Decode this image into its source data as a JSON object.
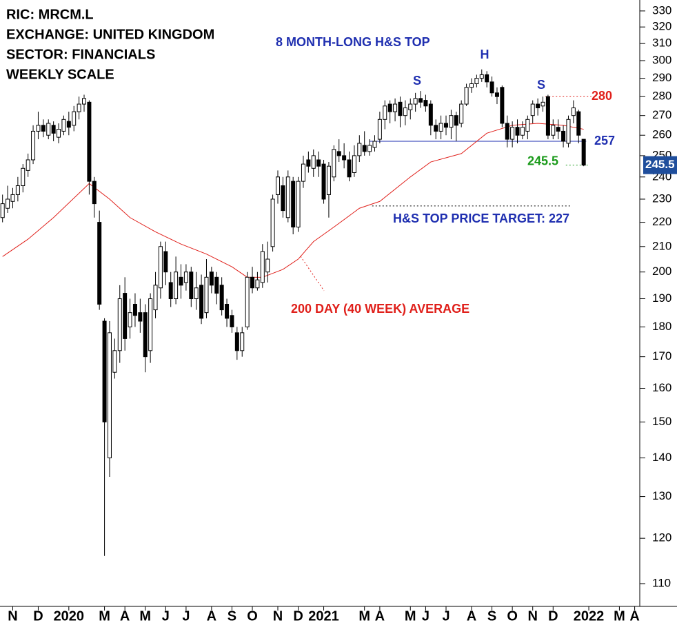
{
  "chart_data": {
    "type": "candlestick",
    "header": [
      "RIC: MRCM.L",
      "EXCHANGE: UNITED KINGDOM",
      "SECTOR: FINANCIALS",
      "WEEKLY SCALE"
    ],
    "open": [
      222,
      226,
      229,
      232,
      236,
      243,
      248,
      262,
      265,
      260,
      265,
      259,
      262,
      267,
      265,
      272,
      276,
      277,
      238,
      220,
      182,
      140,
      165,
      172,
      192,
      180,
      188,
      185,
      185,
      172,
      186,
      194,
      208,
      196,
      190,
      198,
      196,
      200,
      190,
      195,
      185,
      200,
      198,
      195,
      188,
      184,
      178,
      172,
      180,
      198,
      194,
      196,
      200,
      210,
      232,
      236,
      222,
      238,
      218,
      238,
      248,
      244,
      248,
      246,
      232,
      240,
      252,
      250,
      248,
      242,
      250,
      255,
      252,
      254,
      258,
      268,
      276,
      272,
      277,
      270,
      273,
      276,
      279,
      278,
      276,
      265,
      262,
      266,
      264,
      270,
      266,
      276,
      285,
      287,
      290,
      292,
      288,
      282,
      285,
      266,
      258,
      264,
      260,
      262,
      270,
      276,
      275,
      280,
      260,
      264,
      262,
      256,
      270,
      272,
      258
    ],
    "high": [
      232,
      236,
      235,
      240,
      246,
      251,
      265,
      272,
      268,
      268,
      267,
      266,
      270,
      272,
      275,
      280,
      281,
      278,
      240,
      225,
      183,
      182,
      176,
      195,
      198,
      190,
      192,
      190,
      188,
      192,
      200,
      212,
      212,
      200,
      206,
      203,
      203,
      202,
      200,
      199,
      205,
      202,
      200,
      198,
      190,
      186,
      180,
      180,
      200,
      202,
      200,
      211,
      212,
      232,
      243,
      240,
      243,
      240,
      240,
      250,
      252,
      253,
      252,
      248,
      247,
      255,
      258,
      256,
      252,
      255,
      260,
      262,
      258,
      260,
      272,
      278,
      278,
      279,
      280,
      278,
      279,
      282,
      283,
      281,
      278,
      268,
      270,
      270,
      273,
      272,
      278,
      287,
      290,
      292,
      295,
      294,
      291,
      285,
      286,
      270,
      267,
      268,
      267,
      270,
      278,
      279,
      280,
      281,
      268,
      268,
      265,
      270,
      278,
      273,
      258
    ],
    "low": [
      220,
      224,
      226,
      229,
      233,
      240,
      246,
      258,
      259,
      258,
      257,
      256,
      260,
      260,
      262,
      268,
      272,
      232,
      222,
      186,
      116,
      135,
      163,
      168,
      172,
      176,
      180,
      178,
      165,
      168,
      183,
      190,
      195,
      187,
      188,
      190,
      193,
      187,
      186,
      181,
      183,
      192,
      188,
      184,
      180,
      178,
      169,
      170,
      179,
      192,
      193,
      194,
      196,
      208,
      228,
      222,
      220,
      215,
      216,
      235,
      242,
      240,
      240,
      228,
      222,
      238,
      247,
      244,
      238,
      240,
      247,
      250,
      250,
      252,
      256,
      263,
      266,
      267,
      264,
      265,
      268,
      272,
      274,
      272,
      260,
      258,
      258,
      260,
      258,
      257,
      264,
      275,
      282,
      285,
      288,
      285,
      280,
      276,
      264,
      254,
      254,
      256,
      258,
      258,
      266,
      270,
      272,
      258,
      258,
      258,
      254,
      254,
      266,
      256,
      245
    ],
    "close": [
      228,
      230,
      232,
      236,
      244,
      248,
      262,
      265,
      262,
      266,
      261,
      263,
      268,
      264,
      272,
      276,
      279,
      238,
      228,
      188,
      150,
      178,
      172,
      190,
      176,
      185,
      184,
      182,
      170,
      190,
      195,
      210,
      200,
      190,
      200,
      195,
      200,
      190,
      194,
      183,
      198,
      195,
      192,
      186,
      183,
      180,
      172,
      178,
      198,
      194,
      197,
      208,
      205,
      230,
      240,
      225,
      240,
      218,
      238,
      246,
      245,
      250,
      245,
      230,
      245,
      253,
      250,
      248,
      240,
      250,
      256,
      252,
      255,
      257,
      268,
      275,
      272,
      276,
      270,
      274,
      276,
      279,
      277,
      275,
      265,
      262,
      266,
      264,
      270,
      265,
      276,
      285,
      287,
      290,
      292,
      288,
      282,
      280,
      266,
      258,
      264,
      260,
      264,
      268,
      276,
      274,
      277,
      260,
      265,
      262,
      257,
      268,
      274,
      260,
      245.5
    ],
    "moving_average": {
      "name": "200 DAY (40 WEEK) AVERAGE",
      "color": "#e0201b",
      "x": [
        0,
        5,
        10,
        17,
        21,
        25,
        30,
        35,
        40,
        45,
        48,
        51,
        55,
        58,
        61,
        65,
        70,
        74,
        80,
        84,
        90,
        95,
        100,
        105,
        110,
        114
      ],
      "values": [
        206,
        213,
        222,
        237,
        230,
        222,
        216,
        211,
        207,
        202,
        198,
        198,
        201,
        205,
        212,
        218,
        226,
        229,
        240,
        247,
        251,
        261,
        265,
        266,
        265,
        263
      ]
    },
    "xlim": [
      -0.5,
      125
    ],
    "xticks": [
      {
        "value": 2,
        "label": "N"
      },
      {
        "value": 7,
        "label": "D"
      },
      {
        "value": 13,
        "label": "2020"
      },
      {
        "value": 20,
        "label": "M"
      },
      {
        "value": 24,
        "label": "A"
      },
      {
        "value": 28,
        "label": "M"
      },
      {
        "value": 32,
        "label": "J"
      },
      {
        "value": 36,
        "label": "J"
      },
      {
        "value": 41,
        "label": "A"
      },
      {
        "value": 45,
        "label": "S"
      },
      {
        "value": 49,
        "label": "O"
      },
      {
        "value": 54,
        "label": "N"
      },
      {
        "value": 58,
        "label": "D"
      },
      {
        "value": 63,
        "label": "2021"
      },
      {
        "value": 71,
        "label": "M"
      },
      {
        "value": 74,
        "label": "A"
      },
      {
        "value": 80,
        "label": "M"
      },
      {
        "value": 83,
        "label": "J"
      },
      {
        "value": 87,
        "label": "J"
      },
      {
        "value": 92,
        "label": "A"
      },
      {
        "value": 96,
        "label": "S"
      },
      {
        "value": 100,
        "label": "O"
      },
      {
        "value": 104,
        "label": "N"
      },
      {
        "value": 108,
        "label": "D"
      },
      {
        "value": 115,
        "label": "2022"
      },
      {
        "value": 121,
        "label": "M"
      },
      {
        "value": 124,
        "label": "A"
      }
    ],
    "ylim": [
      105.3,
      337
    ],
    "log_scale": true,
    "yticks": [
      110,
      120,
      130,
      140,
      150,
      160,
      170,
      180,
      190,
      200,
      210,
      220,
      230,
      240,
      250,
      260,
      270,
      280,
      290,
      300,
      310,
      320,
      330
    ],
    "last_price": 245.5,
    "levels": {
      "resistance": 280,
      "neckline": 257,
      "low_close": 245.5,
      "target": 227
    },
    "annotations": {
      "pattern": "8 MONTH-LONG H&S TOP",
      "left_shoulder": "S",
      "head": "H",
      "right_shoulder": "S",
      "target": "H&S TOP PRICE TARGET: 227",
      "average": "200 DAY (40 WEEK) AVERAGE"
    }
  }
}
